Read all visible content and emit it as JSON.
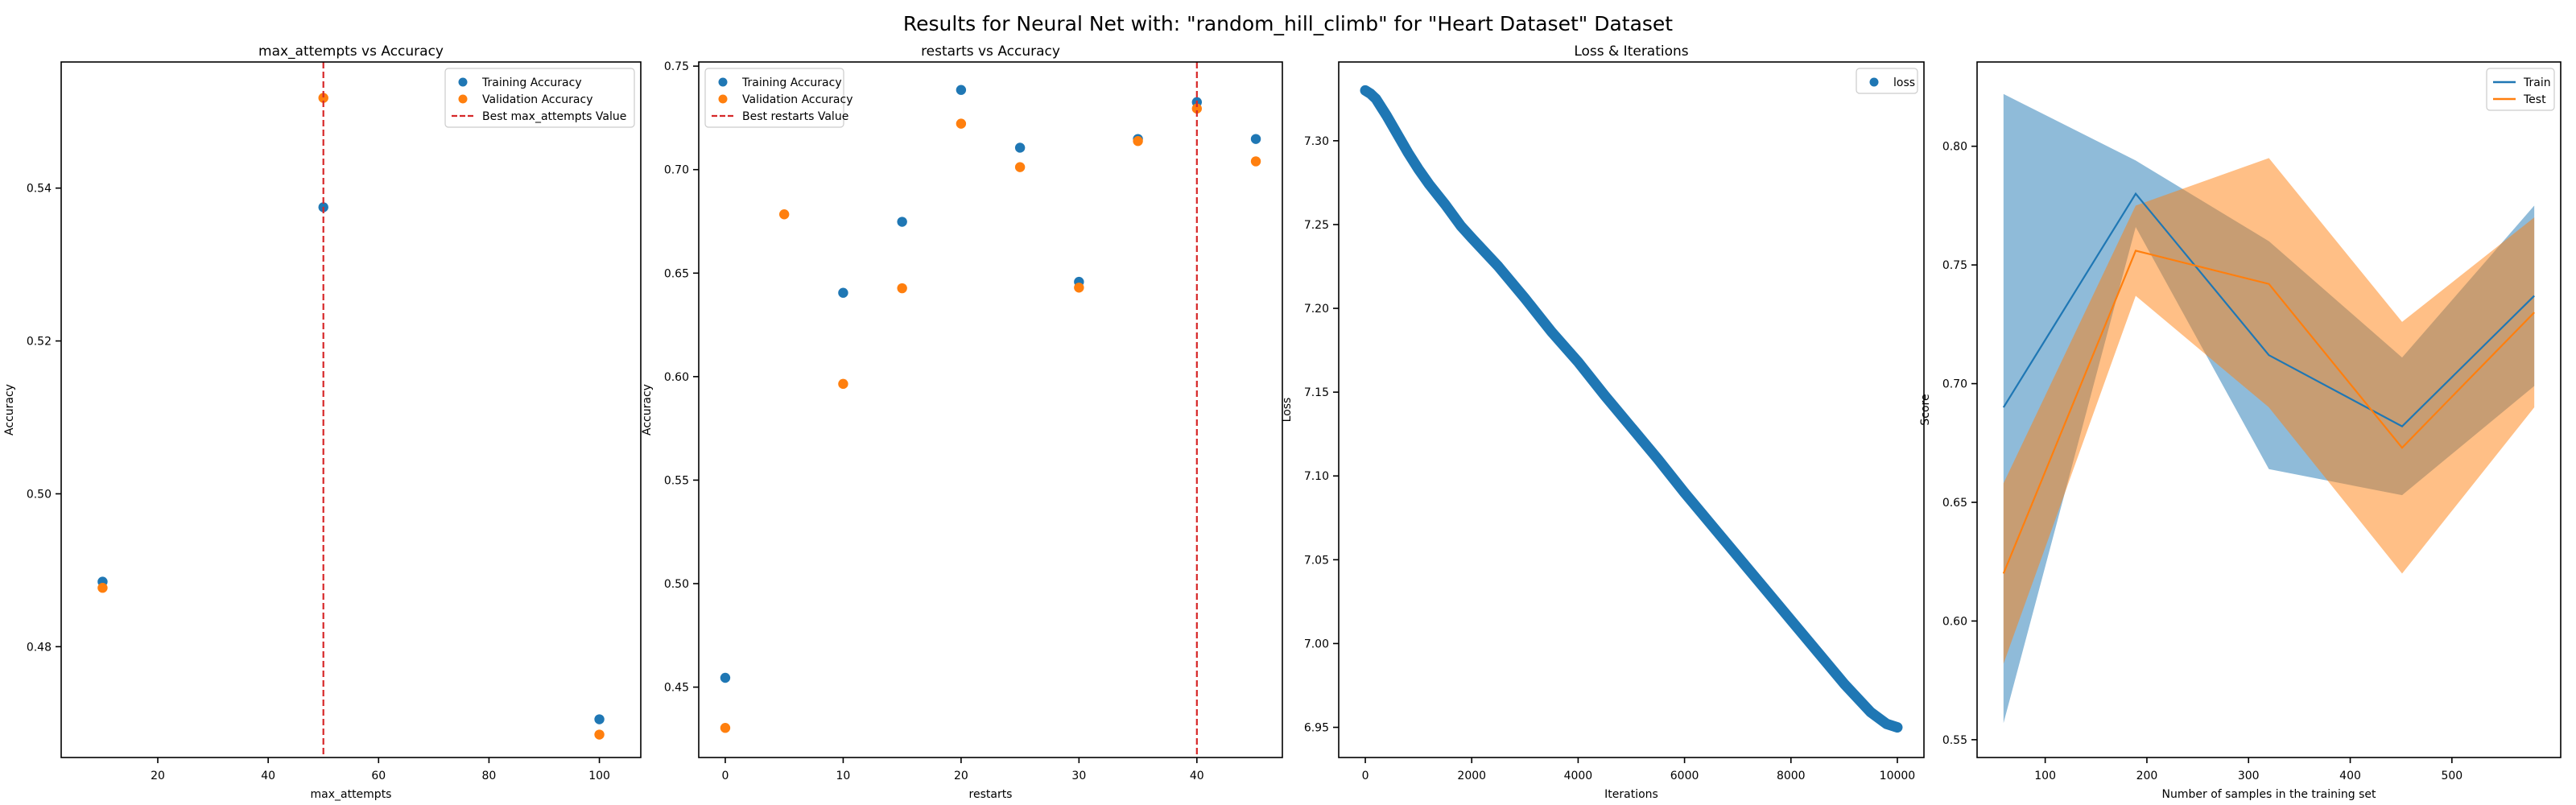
{
  "figure": {
    "title": "Results for Neural Net with: \"random_hill_climb\" for \"Heart Dataset\" Dataset"
  },
  "chart_data": [
    {
      "type": "scatter",
      "title": "max_attempts vs Accuracy",
      "xlabel": "max_attempts",
      "ylabel": "Accuracy",
      "xlim": [
        2.5,
        107.5
      ],
      "ylim": [
        0.4655,
        0.5565
      ],
      "xticks": [
        20,
        40,
        60,
        80,
        100
      ],
      "xtick_labels": [
        "20",
        "40",
        "60",
        "80",
        "100"
      ],
      "yticks": [
        0.48,
        0.5,
        0.52,
        0.54
      ],
      "ytick_labels": [
        "0.48",
        "0.50",
        "0.52",
        "0.54"
      ],
      "legend_position": "top-right",
      "series": [
        {
          "name": "Training Accuracy",
          "color": "#1f77b4",
          "x": [
            10,
            50,
            100
          ],
          "y": [
            0.4885,
            0.5375,
            0.4705
          ]
        },
        {
          "name": "Validation Accuracy",
          "color": "#ff7f0e",
          "x": [
            10,
            50,
            100
          ],
          "y": [
            0.4877,
            0.5518,
            0.4685
          ]
        }
      ],
      "vline": {
        "name": "Best max_attempts Value",
        "x": 50,
        "color": "#d62728",
        "style": "dashed"
      }
    },
    {
      "type": "scatter",
      "title": "restarts vs Accuracy",
      "xlabel": "restarts",
      "ylabel": "Accuracy",
      "xlim": [
        -2.25,
        47.25
      ],
      "ylim": [
        0.416,
        0.752
      ],
      "xticks": [
        0,
        10,
        20,
        30,
        40
      ],
      "xtick_labels": [
        "0",
        "10",
        "20",
        "30",
        "40"
      ],
      "yticks": [
        0.45,
        0.5,
        0.55,
        0.6,
        0.65,
        0.7,
        0.75
      ],
      "ytick_labels": [
        "0.45",
        "0.50",
        "0.55",
        "0.60",
        "0.65",
        "0.70",
        "0.75"
      ],
      "legend_position": "top-left",
      "series": [
        {
          "name": "Training Accuracy",
          "color": "#1f77b4",
          "x": [
            0,
            10,
            15,
            20,
            25,
            30,
            35,
            40,
            45
          ],
          "y": [
            0.4545,
            0.6405,
            0.6748,
            0.7385,
            0.7106,
            0.6458,
            0.7148,
            0.7326,
            0.7148
          ]
        },
        {
          "name": "Validation Accuracy",
          "color": "#ff7f0e",
          "x": [
            0,
            5,
            10,
            15,
            20,
            25,
            30,
            35,
            40,
            45
          ],
          "y": [
            0.4303,
            0.6784,
            0.5965,
            0.6427,
            0.7222,
            0.7012,
            0.643,
            0.7138,
            0.7295,
            0.704
          ]
        }
      ],
      "vline": {
        "name": "Best restarts Value",
        "x": 40,
        "color": "#d62728",
        "style": "dashed"
      }
    },
    {
      "type": "scatter",
      "title": "Loss & Iterations",
      "xlabel": "Iterations",
      "ylabel": "Loss",
      "xlim": [
        -500,
        10500
      ],
      "ylim": [
        6.932,
        7.347
      ],
      "xticks": [
        0,
        2000,
        4000,
        6000,
        8000,
        10000
      ],
      "xtick_labels": [
        "0",
        "2000",
        "4000",
        "6000",
        "8000",
        "10000"
      ],
      "yticks": [
        6.95,
        7.0,
        7.05,
        7.1,
        7.15,
        7.2,
        7.25,
        7.3
      ],
      "ytick_labels": [
        "6.95",
        "7.00",
        "7.05",
        "7.10",
        "7.15",
        "7.20",
        "7.25",
        "7.30"
      ],
      "legend_position": "top-right",
      "series": [
        {
          "name": "loss",
          "color": "#1f77b4",
          "x": [
            0,
            100,
            200,
            300,
            400,
            600,
            800,
            1000,
            1200,
            1500,
            1800,
            2000,
            2500,
            3000,
            3500,
            4000,
            4500,
            5000,
            5500,
            6000,
            6500,
            7000,
            7500,
            8000,
            8500,
            9000,
            9500,
            9800,
            10000
          ],
          "y": [
            7.33,
            7.328,
            7.325,
            7.32,
            7.315,
            7.304,
            7.293,
            7.283,
            7.274,
            7.262,
            7.249,
            7.242,
            7.225,
            7.206,
            7.186,
            7.168,
            7.148,
            7.129,
            7.11,
            7.09,
            7.071,
            7.052,
            7.033,
            7.014,
            6.995,
            6.976,
            6.959,
            6.952,
            6.95
          ]
        }
      ]
    },
    {
      "type": "line",
      "title": "",
      "xlabel": "Number of samples in the training set",
      "ylabel": "Score",
      "xlim": [
        33,
        607
      ],
      "ylim": [
        0.5425,
        0.8355
      ],
      "xticks": [
        100,
        200,
        300,
        400,
        500
      ],
      "xtick_labels": [
        "100",
        "200",
        "300",
        "400",
        "500"
      ],
      "yticks": [
        0.55,
        0.6,
        0.65,
        0.7,
        0.75,
        0.8
      ],
      "ytick_labels": [
        "0.55",
        "0.60",
        "0.65",
        "0.70",
        "0.75",
        "0.80"
      ],
      "legend_position": "top-right",
      "x": [
        59,
        189,
        320,
        451,
        581
      ],
      "series": [
        {
          "name": "Train",
          "color": "#1f77b4",
          "values": [
            0.69,
            0.78,
            0.712,
            0.682,
            0.737
          ],
          "band_low": [
            0.557,
            0.766,
            0.664,
            0.653,
            0.699
          ],
          "band_high": [
            0.822,
            0.794,
            0.76,
            0.711,
            0.775
          ]
        },
        {
          "name": "Test",
          "color": "#ff7f0e",
          "values": [
            0.62,
            0.756,
            0.742,
            0.673,
            0.73
          ],
          "band_low": [
            0.582,
            0.737,
            0.69,
            0.62,
            0.69
          ],
          "band_high": [
            0.658,
            0.775,
            0.795,
            0.726,
            0.77
          ]
        }
      ]
    }
  ]
}
